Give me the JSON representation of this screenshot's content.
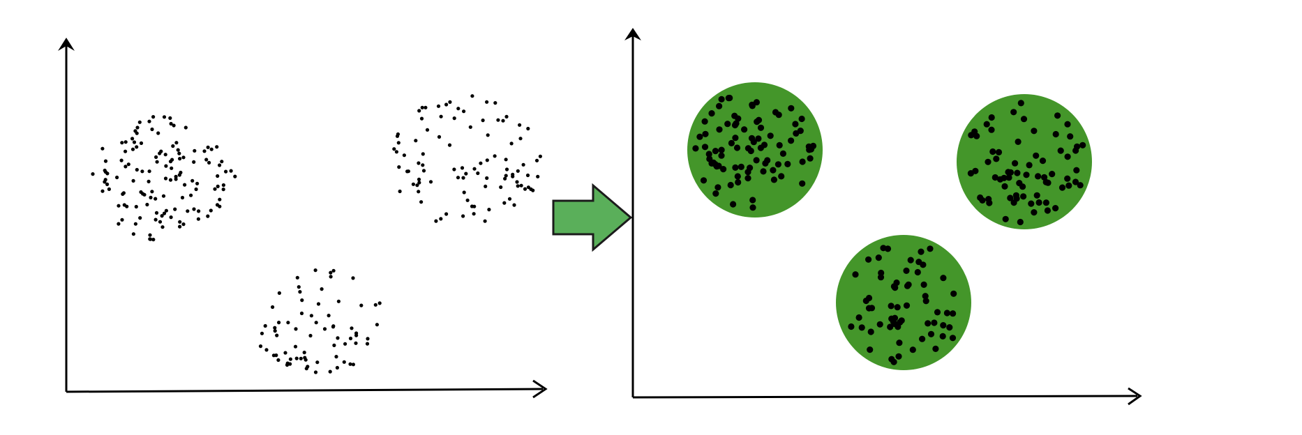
{
  "diagram": {
    "kind": "clustering-before-after",
    "colors": {
      "background": "#ffffff",
      "axis": "#000000",
      "point": "#000000",
      "cluster_fill": "#44962a",
      "arrow_fill": "#5aaf5a",
      "arrow_stroke": "#1b1b1b"
    },
    "panels": [
      {
        "name": "unclustered-data",
        "clusters_highlighted": false,
        "cluster_count": 3
      },
      {
        "name": "clustered-data",
        "clusters_highlighted": true,
        "cluster_count": 3
      }
    ],
    "transition_icon": "right-arrow-icon"
  }
}
